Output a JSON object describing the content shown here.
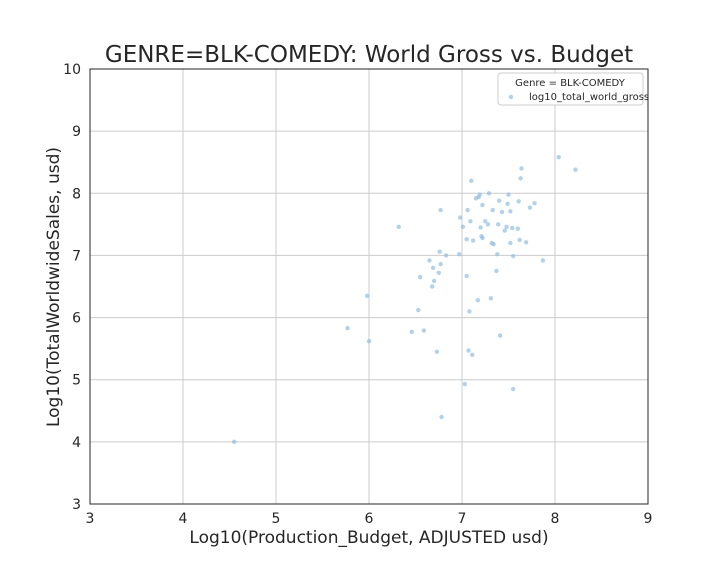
{
  "chart_data": {
    "type": "scatter",
    "title": "GENRE=BLK-COMEDY: World Gross vs. Budget",
    "xlabel": "Log10(Production_Budget, ADJUSTED usd)",
    "ylabel": "Log10(TotalWorldwideSales, usd)",
    "xlim": [
      3,
      9
    ],
    "ylim": [
      3,
      10
    ],
    "xticks": [
      "3",
      "4",
      "5",
      "6",
      "7",
      "8",
      "9"
    ],
    "yticks": [
      "3",
      "4",
      "5",
      "6",
      "7",
      "8",
      "9",
      "10"
    ],
    "grid": true,
    "legend": {
      "title": "Genre = BLK-COMEDY",
      "placement": "top-right",
      "entries": [
        "log10_total_world_gross"
      ]
    },
    "colors": {
      "point": "#8fbfe3",
      "grid": "#cccccc",
      "frame": "#262626"
    },
    "series": [
      {
        "name": "log10_total_world_gross",
        "points": [
          [
            4.55,
            4.0
          ],
          [
            5.77,
            5.83
          ],
          [
            5.98,
            6.35
          ],
          [
            6.0,
            5.62
          ],
          [
            6.32,
            7.46
          ],
          [
            6.46,
            5.77
          ],
          [
            6.53,
            6.12
          ],
          [
            6.55,
            6.65
          ],
          [
            6.59,
            5.79
          ],
          [
            6.65,
            6.92
          ],
          [
            6.68,
            6.5
          ],
          [
            6.69,
            6.8
          ],
          [
            6.7,
            6.59
          ],
          [
            6.73,
            5.45
          ],
          [
            6.75,
            6.72
          ],
          [
            6.76,
            7.06
          ],
          [
            6.77,
            6.86
          ],
          [
            6.77,
            7.73
          ],
          [
            6.78,
            4.4
          ],
          [
            6.83,
            7.0
          ],
          [
            6.97,
            7.02
          ],
          [
            6.98,
            7.61
          ],
          [
            7.01,
            7.46
          ],
          [
            7.03,
            4.93
          ],
          [
            7.05,
            6.67
          ],
          [
            7.05,
            7.26
          ],
          [
            7.06,
            7.73
          ],
          [
            7.07,
            5.47
          ],
          [
            7.08,
            6.1
          ],
          [
            7.09,
            7.55
          ],
          [
            7.1,
            8.2
          ],
          [
            7.11,
            5.4
          ],
          [
            7.12,
            7.24
          ],
          [
            7.15,
            7.92
          ],
          [
            7.17,
            6.28
          ],
          [
            7.18,
            7.94
          ],
          [
            7.19,
            7.98
          ],
          [
            7.2,
            7.45
          ],
          [
            7.21,
            7.31
          ],
          [
            7.22,
            7.28
          ],
          [
            7.22,
            7.81
          ],
          [
            7.25,
            7.55
          ],
          [
            7.28,
            7.5
          ],
          [
            7.29,
            8.0
          ],
          [
            7.31,
            6.31
          ],
          [
            7.32,
            7.2
          ],
          [
            7.33,
            7.73
          ],
          [
            7.34,
            7.18
          ],
          [
            7.37,
            6.75
          ],
          [
            7.38,
            7.02
          ],
          [
            7.39,
            7.5
          ],
          [
            7.4,
            7.88
          ],
          [
            7.41,
            5.71
          ],
          [
            7.43,
            7.7
          ],
          [
            7.46,
            7.4
          ],
          [
            7.48,
            7.46
          ],
          [
            7.49,
            7.83
          ],
          [
            7.5,
            7.98
          ],
          [
            7.52,
            7.2
          ],
          [
            7.52,
            7.71
          ],
          [
            7.54,
            7.44
          ],
          [
            7.55,
            6.99
          ],
          [
            7.55,
            4.85
          ],
          [
            7.6,
            7.43
          ],
          [
            7.61,
            7.87
          ],
          [
            7.62,
            7.25
          ],
          [
            7.63,
            8.24
          ],
          [
            7.64,
            8.4
          ],
          [
            7.69,
            7.21
          ],
          [
            7.73,
            7.77
          ],
          [
            7.78,
            7.84
          ],
          [
            7.87,
            6.92
          ],
          [
            8.04,
            8.58
          ],
          [
            8.22,
            8.38
          ]
        ]
      }
    ]
  }
}
